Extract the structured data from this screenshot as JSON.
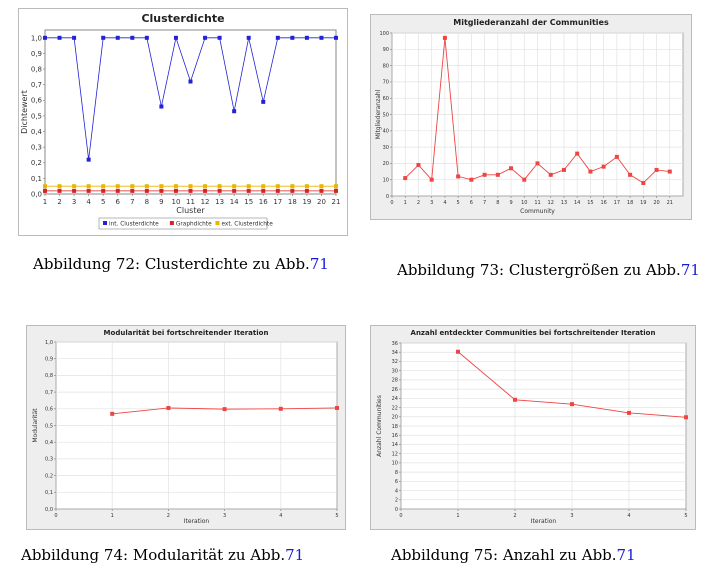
{
  "captions": {
    "c72": {
      "prefix": "Abbildung 72: Clusterdichte zu Abb.",
      "ref": "71"
    },
    "c73": {
      "prefix": "Abbildung 73: Clustergrößen zu Abb.",
      "ref": "71"
    },
    "c74": {
      "prefix": "Abbildung 74: Modularität zu Abb.",
      "ref": "71"
    },
    "c75": {
      "prefix": "Abbildung 75: Anzahl zu Abb.",
      "ref": "71"
    }
  },
  "chart_data": [
    {
      "type": "line",
      "title": "Clusterdichte",
      "xlabel": "Cluster",
      "ylabel": "Dichtewert",
      "xlim": [
        1,
        21
      ],
      "ylim": [
        0,
        1.05
      ],
      "xticks": [
        "1",
        "2",
        "3",
        "4",
        "5",
        "6",
        "7",
        "8",
        "9",
        "10",
        "11",
        "12",
        "13",
        "14",
        "15",
        "16",
        "17",
        "18",
        "19",
        "20",
        "21"
      ],
      "yticks": [
        "0,0",
        "0,1",
        "0,2",
        "0,3",
        "0,4",
        "0,5",
        "0,6",
        "0,7",
        "0,8",
        "0,9",
        "1,0"
      ],
      "x": [
        1,
        2,
        3,
        4,
        5,
        6,
        7,
        8,
        9,
        10,
        11,
        12,
        13,
        14,
        15,
        16,
        17,
        18,
        19,
        20,
        21
      ],
      "series": [
        {
          "name": "int. Clusterdichte",
          "color": "#2323d6",
          "values": [
            1.0,
            1.0,
            1.0,
            0.22,
            1.0,
            1.0,
            1.0,
            1.0,
            0.56,
            1.0,
            0.72,
            1.0,
            1.0,
            0.53,
            1.0,
            0.59,
            1.0,
            1.0,
            1.0,
            1.0,
            1.0
          ]
        },
        {
          "name": "Graphdichte",
          "color": "#dd2222",
          "values": [
            0.02,
            0.02,
            0.02,
            0.02,
            0.02,
            0.02,
            0.02,
            0.02,
            0.02,
            0.02,
            0.02,
            0.02,
            0.02,
            0.02,
            0.02,
            0.02,
            0.02,
            0.02,
            0.02,
            0.02,
            0.02
          ]
        },
        {
          "name": "ext. Clusterdichte",
          "color": "#e6b800",
          "values": [
            0.05,
            0.05,
            0.05,
            0.05,
            0.05,
            0.05,
            0.05,
            0.05,
            0.05,
            0.05,
            0.05,
            0.05,
            0.05,
            0.05,
            0.05,
            0.05,
            0.05,
            0.05,
            0.05,
            0.05,
            0.05
          ]
        }
      ],
      "legend": "bottom",
      "grid": false
    },
    {
      "type": "line",
      "title": "Mitgliederanzahl der Communities",
      "xlabel": "Community",
      "ylabel": "Mitgliederanzahl",
      "xlim": [
        0,
        22
      ],
      "ylim": [
        0,
        100
      ],
      "xticks": [
        "0",
        "1",
        "2",
        "3",
        "4",
        "5",
        "6",
        "7",
        "8",
        "9",
        "10",
        "11",
        "12",
        "13",
        "14",
        "15",
        "16",
        "17",
        "18",
        "19",
        "20",
        "21"
      ],
      "yticks": [
        "0",
        "10",
        "20",
        "30",
        "40",
        "50",
        "60",
        "70",
        "80",
        "90",
        "100"
      ],
      "x": [
        1,
        2,
        3,
        4,
        5,
        6,
        7,
        8,
        9,
        10,
        11,
        12,
        13,
        14,
        15,
        16,
        17,
        18,
        19,
        20,
        21
      ],
      "series": [
        {
          "color": "#ee4444",
          "values": [
            11,
            19,
            10,
            97,
            12,
            10,
            13,
            13,
            17,
            10,
            20,
            13,
            16,
            26,
            15,
            18,
            24,
            13,
            8,
            16,
            15
          ]
        }
      ],
      "grid": true
    },
    {
      "type": "line",
      "title": "Modularität bei fortschreitender Iteration",
      "xlabel": "Iteration",
      "ylabel": "Modularität",
      "xlim": [
        0,
        5
      ],
      "ylim": [
        0,
        1.0
      ],
      "xticks": [
        "0",
        "1",
        "2",
        "3",
        "4",
        "5"
      ],
      "yticks": [
        "0,0",
        "0,1",
        "0,2",
        "0,3",
        "0,4",
        "0,5",
        "0,6",
        "0,7",
        "0,8",
        "0,9",
        "1,0"
      ],
      "x": [
        1,
        2,
        3,
        4,
        5
      ],
      "series": [
        {
          "color": "#ee4444",
          "values": [
            0.57,
            0.605,
            0.598,
            0.6,
            0.605
          ]
        }
      ],
      "grid": true
    },
    {
      "type": "line",
      "title": "Anzahl entdeckter Communities bei fortschreitender Iteration",
      "xlabel": "Iteration",
      "ylabel": "Anzahl Communities",
      "xlim": [
        0,
        5
      ],
      "ylim": [
        0,
        38
      ],
      "xticks": [
        "0",
        "1",
        "2",
        "3",
        "4",
        "5"
      ],
      "yticks": [
        "0",
        "2",
        "4",
        "6",
        "8",
        "10",
        "12",
        "14",
        "16",
        "18",
        "20",
        "22",
        "24",
        "26",
        "28",
        "30",
        "32",
        "34",
        "36"
      ],
      "x": [
        1,
        2,
        3,
        4,
        5
      ],
      "series": [
        {
          "color": "#ee4444",
          "values": [
            36,
            25,
            24,
            22,
            21
          ]
        }
      ],
      "grid": true
    }
  ]
}
